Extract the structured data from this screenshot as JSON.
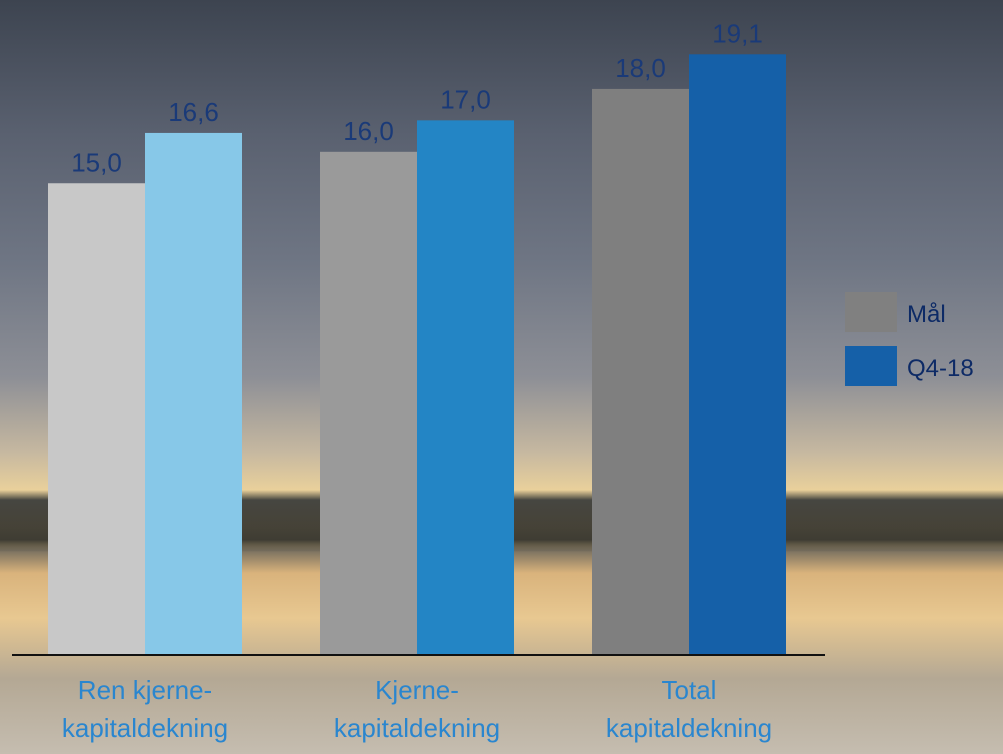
{
  "chart_data": {
    "type": "bar",
    "categories": [
      "Ren kjerne-\nkapitaldekning",
      "Kjerne-\nkapitaldekning",
      "Total\nkapitaldekning"
    ],
    "series": [
      {
        "name": "Mål",
        "color": "#808080",
        "point_colors": [
          "#c8c8c8",
          "#9a9a9a",
          "#7f7f7f"
        ],
        "values": [
          15.0,
          16.0,
          18.0
        ],
        "value_labels": [
          "15,0",
          "16,0",
          "18,0"
        ]
      },
      {
        "name": "Q4-18",
        "color": "#1560a8",
        "point_colors": [
          "#87c8e8",
          "#2385c5",
          "#1560a8"
        ],
        "values": [
          16.6,
          17.0,
          19.1
        ],
        "value_labels": [
          "16,6",
          "17,0",
          "19,1"
        ]
      }
    ],
    "ylim": [
      0,
      20
    ],
    "legend": "right"
  }
}
